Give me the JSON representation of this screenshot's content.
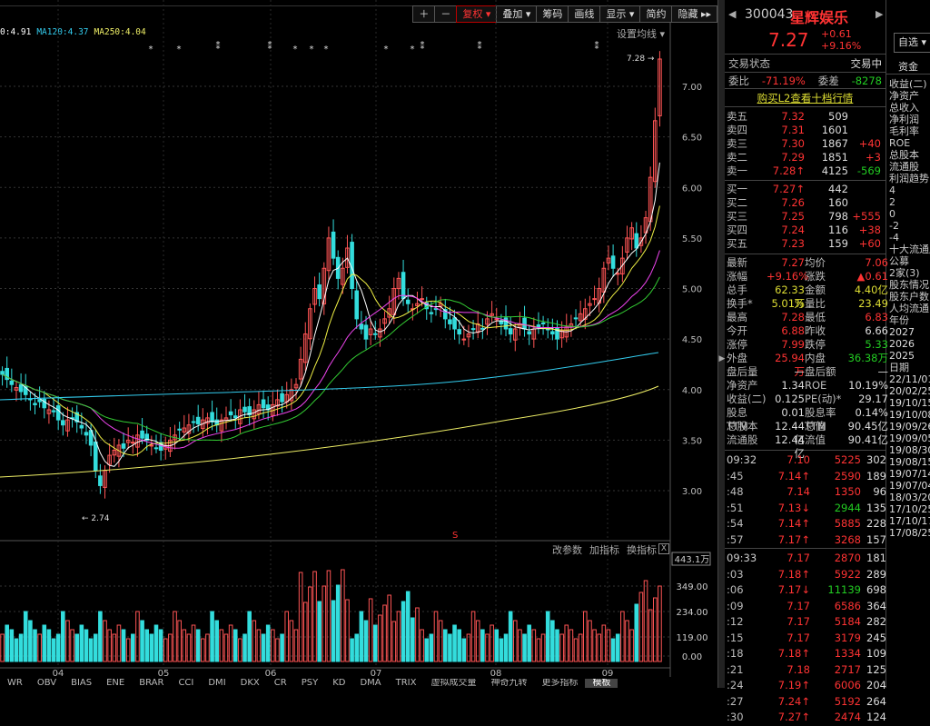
{
  "toolbar": {
    "buttons": [
      "＋",
      "－",
      "复权 ▾",
      "叠加 ▾",
      "筹码",
      "画线",
      "显示 ▾",
      "简约",
      "隐藏 ▸▸"
    ]
  },
  "ma_legend": [
    {
      "text": "0:4.91",
      "color": "#ffffff"
    },
    {
      "text": "MA120:4.37",
      "color": "#33ccee"
    },
    {
      "text": "MA250:4.04",
      "color": "#eeee66"
    }
  ],
  "ma_settings": "设置均线 ▾",
  "chart_data": {
    "type": "candlestick",
    "price_axis": [
      "7.00",
      "6.50",
      "6.00",
      "5.50",
      "5.00",
      "4.50",
      "4.00",
      "3.50",
      "3.00"
    ],
    "high_label": "7.28",
    "low_label": "2.74",
    "x_labels": [
      "04",
      "05",
      "06",
      "07",
      "08",
      "09"
    ],
    "vol_axis": [
      "443.1万",
      "349.00",
      "234.00",
      "119.00",
      "0.00"
    ]
  },
  "vol_header": [
    "改参数",
    "加指标",
    "换指标"
  ],
  "vol_close": "X",
  "bottom_tabs": [
    "WR",
    "OBV",
    "BIAS",
    "ENE",
    "BRAR",
    "CCI",
    "DMI",
    "DKX",
    "CR",
    "PSY",
    "KD",
    "DMA",
    "TRIX",
    "虚拟成交量",
    "神奇九转",
    "更多指标",
    "模板"
  ],
  "stock": {
    "code": "300043",
    "name": "星辉娱乐",
    "price": "7.27",
    "change": "+0.61",
    "pct": "+9.16%",
    "nav_left": "◀",
    "nav_right": "▶"
  },
  "trade_state": {
    "label": "交易状态",
    "value": "交易中"
  },
  "weibi": {
    "l1": "委比",
    "v1": "-71.19%",
    "l2": "委差",
    "v2": "-8278"
  },
  "l2_link": "购买L2查看十档行情",
  "sells": [
    [
      "卖五",
      "7.32",
      "509",
      ""
    ],
    [
      "卖四",
      "7.31",
      "1601",
      ""
    ],
    [
      "卖三",
      "7.30",
      "1867",
      "+40"
    ],
    [
      "卖二",
      "7.29",
      "1851",
      "+3"
    ],
    [
      "卖一",
      "7.28↑",
      "4125",
      "-569"
    ]
  ],
  "buys": [
    [
      "买一",
      "7.27↑",
      "442",
      ""
    ],
    [
      "买二",
      "7.26",
      "160",
      ""
    ],
    [
      "买三",
      "7.25",
      "798",
      "+555"
    ],
    [
      "买四",
      "7.24",
      "116",
      "+38"
    ],
    [
      "买五",
      "7.23",
      "159",
      "+60"
    ]
  ],
  "quotes": [
    [
      "最新",
      "7.27",
      "均价",
      "7.06"
    ],
    [
      "涨幅",
      "+9.16%",
      "涨跌",
      "▲0.61"
    ],
    [
      "总手",
      "62.33万",
      "金额",
      "4.40亿"
    ],
    [
      "换手*",
      "5.01%",
      "量比",
      "23.49"
    ],
    [
      "最高",
      "7.28",
      "最低",
      "6.83"
    ],
    [
      "今开",
      "6.88",
      "昨收",
      "6.66"
    ],
    [
      "涨停",
      "7.99",
      "跌停",
      "5.33"
    ],
    [
      "外盘",
      "25.94万",
      "内盘",
      "36.38万"
    ],
    [
      "盘后量",
      "—",
      "盘后额",
      "—"
    ],
    [
      "净资产",
      "1.34",
      "ROE",
      "10.19%"
    ],
    [
      "收益(二)",
      "0.125",
      "PE(动)*",
      "29.17"
    ],
    [
      "股息TTM",
      "0.01",
      "股息率TTM",
      "0.14%"
    ],
    [
      "总股本",
      "12.44亿",
      "总值",
      "90.45亿"
    ],
    [
      "流通股",
      "12.44亿",
      "流值",
      "90.41亿"
    ]
  ],
  "ticks1": [
    [
      "09:32",
      "7.10",
      "5225",
      "302"
    ],
    [
      ":45",
      "7.14↑",
      "2590",
      "189"
    ],
    [
      ":48",
      "7.14",
      "1350",
      "96"
    ],
    [
      ":51",
      "7.13↓",
      "2944",
      "135"
    ],
    [
      ":54",
      "7.14↑",
      "5885",
      "228"
    ],
    [
      ":57",
      "7.17↑",
      "3268",
      "157"
    ]
  ],
  "ticks2": [
    [
      "09:33",
      "7.17",
      "2870",
      "181"
    ],
    [
      ":03",
      "7.18↑",
      "5922",
      "289"
    ],
    [
      ":06",
      "7.17↓",
      "11139",
      "698"
    ],
    [
      ":09",
      "7.17",
      "6586",
      "364"
    ],
    [
      ":12",
      "7.17",
      "5184",
      "282"
    ],
    [
      ":15",
      "7.17",
      "3179",
      "245"
    ],
    [
      ":18",
      "7.18↑",
      "1334",
      "109"
    ],
    [
      ":21",
      "7.18",
      "2717",
      "125"
    ],
    [
      ":24",
      "7.19↑",
      "6006",
      "204"
    ],
    [
      ":27",
      "7.24↑",
      "5192",
      "264"
    ],
    [
      ":30",
      "7.27↑",
      "2474",
      "124"
    ]
  ],
  "right_panel": {
    "tab": "资金",
    "items": [
      "收益(二)",
      "净资产",
      "总收入",
      "净利润",
      "毛利率",
      "ROE",
      "总股本",
      "流通股",
      "利润趋势",
      "4",
      "2",
      "0",
      "-2",
      "-4",
      "十大流通股",
      "公募",
      "2家(3)",
      "股东情况",
      "股东户数",
      "人均流通",
      "年份",
      "2027",
      "2026",
      "2025",
      "日期",
      "22/11/01",
      "20/02/25",
      "19/10/15",
      "19/10/08",
      "19/09/26",
      "19/09/05",
      "19/08/30",
      "19/08/15",
      "19/07/14",
      "19/07/04",
      "18/03/20",
      "17/10/25",
      "17/10/17",
      "17/08/25"
    ],
    "select": "自选 ▾"
  }
}
